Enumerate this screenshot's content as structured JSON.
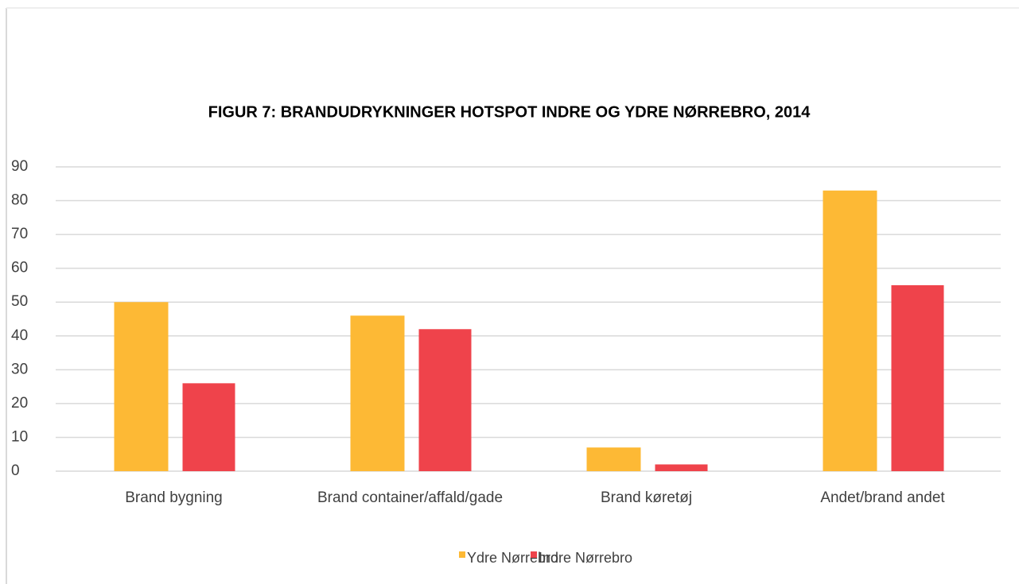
{
  "chart_data": {
    "type": "bar",
    "title": "FIGUR 7: BRANDUDRYKNINGER HOTSPOT INDRE OG YDRE NØRREBRO, 2014",
    "categories": [
      "Brand bygning",
      "Brand container/affald/gade",
      "Brand køretøj",
      "Andet/brand andet"
    ],
    "series": [
      {
        "name": "Ydre Nørrebro",
        "color": "#fdb935",
        "values": [
          50,
          46,
          7,
          83
        ]
      },
      {
        "name": "Indre Nørrebro",
        "color": "#ef434b",
        "values": [
          26,
          42,
          2,
          55
        ]
      }
    ],
    "ylim": [
      0,
      90
    ],
    "yticks": [
      0,
      10,
      20,
      30,
      40,
      50,
      60,
      70,
      80,
      90
    ],
    "grid": true,
    "legend": "bottom"
  }
}
